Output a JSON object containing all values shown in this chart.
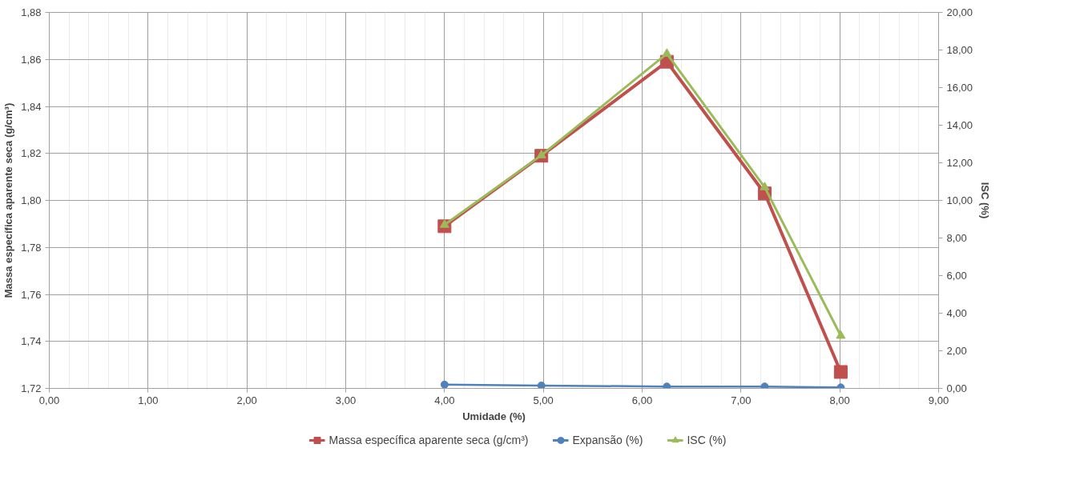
{
  "chart_data": {
    "type": "line",
    "xlabel": "Umidade (%)",
    "ylabel": "Massa específica aparente seca (g/cm³)",
    "y2label": "ISC (%)",
    "x": [
      4.0,
      4.98,
      6.25,
      7.24,
      8.01
    ],
    "series": [
      {
        "name": "Massa específica aparente seca (g/cm³)",
        "color": "#c0504d",
        "marker": "square",
        "values": [
          1.789,
          1.819,
          1.859,
          1.803,
          1.727
        ]
      },
      {
        "name": "Expansão (%)",
        "color": "#4f81bd",
        "marker": "circle",
        "axis": "y2",
        "values": [
          0.2,
          0.15,
          0.1,
          0.1,
          0.05
        ]
      },
      {
        "name": "ISC (%)",
        "color": "#9bbb59",
        "marker": "triangle",
        "axis": "y2",
        "values": [
          8.7,
          12.4,
          17.8,
          10.7,
          2.8
        ]
      }
    ],
    "xlim": [
      0,
      9
    ],
    "xticks": [
      {
        "value": 0,
        "label": "0,00"
      },
      {
        "value": 1,
        "label": "1,00"
      },
      {
        "value": 2,
        "label": "2,00"
      },
      {
        "value": 3,
        "label": "3,00"
      },
      {
        "value": 4,
        "label": "4,00"
      },
      {
        "value": 5,
        "label": "5,00"
      },
      {
        "value": 6,
        "label": "6,00"
      },
      {
        "value": 7,
        "label": "7,00"
      },
      {
        "value": 8,
        "label": "8,00"
      },
      {
        "value": 9,
        "label": "9,00"
      }
    ],
    "ylim": [
      1.72,
      1.88
    ],
    "yticks": [
      {
        "value": 1.72,
        "label": "1,72"
      },
      {
        "value": 1.74,
        "label": "1,74"
      },
      {
        "value": 1.76,
        "label": "1,76"
      },
      {
        "value": 1.78,
        "label": "1,78"
      },
      {
        "value": 1.8,
        "label": "1,80"
      },
      {
        "value": 1.82,
        "label": "1,82"
      },
      {
        "value": 1.84,
        "label": "1,84"
      },
      {
        "value": 1.86,
        "label": "1,86"
      },
      {
        "value": 1.88,
        "label": "1,88"
      }
    ],
    "y2lim": [
      0,
      20
    ],
    "y2ticks": [
      {
        "value": 0,
        "label": "0,00"
      },
      {
        "value": 2,
        "label": "2,00"
      },
      {
        "value": 4,
        "label": "4,00"
      },
      {
        "value": 6,
        "label": "6,00"
      },
      {
        "value": 8,
        "label": "8,00"
      },
      {
        "value": 10,
        "label": "10,00"
      },
      {
        "value": 12,
        "label": "12,00"
      },
      {
        "value": 14,
        "label": "14,00"
      },
      {
        "value": 16,
        "label": "16,00"
      },
      {
        "value": 18,
        "label": "18,00"
      },
      {
        "value": 20,
        "label": "20,00"
      }
    ],
    "grid": true,
    "legend": "bottom",
    "line_style": "solid"
  }
}
